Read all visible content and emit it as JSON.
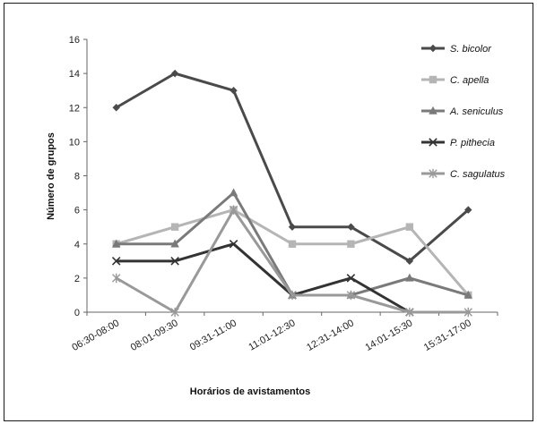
{
  "chart_data": {
    "type": "line",
    "title": "",
    "xlabel": "Horários de avistamentos",
    "ylabel": "Número de grupos",
    "categories": [
      "06:30-08:00",
      "08:01-09:30",
      "09:31-11:00",
      "11:01-12:30",
      "12:31-14:00",
      "14:01-15:30",
      "15:31-17:00"
    ],
    "ylim": [
      0,
      16
    ],
    "yticks": [
      0,
      2,
      4,
      6,
      8,
      10,
      12,
      14,
      16
    ],
    "grid": false,
    "legend_position": "top-right",
    "series": [
      {
        "name": "S. bicolor",
        "values": [
          12,
          14,
          13,
          5,
          5,
          3,
          6
        ],
        "color": "#4a4a4a",
        "marker": "diamond"
      },
      {
        "name": "C. apella",
        "values": [
          4,
          5,
          6,
          4,
          4,
          5,
          1
        ],
        "color": "#b5b5b5",
        "marker": "square"
      },
      {
        "name": "A. seniculus",
        "values": [
          4,
          4,
          7,
          1,
          1,
          2,
          1
        ],
        "color": "#7a7a7a",
        "marker": "triangle"
      },
      {
        "name": "P. pithecia",
        "values": [
          3,
          3,
          4,
          1,
          2,
          0,
          null
        ],
        "color": "#333333",
        "marker": "x"
      },
      {
        "name": "C. sagulatus",
        "values": [
          2,
          0,
          6,
          1,
          1,
          0,
          0
        ],
        "color": "#999999",
        "marker": "star"
      }
    ]
  }
}
